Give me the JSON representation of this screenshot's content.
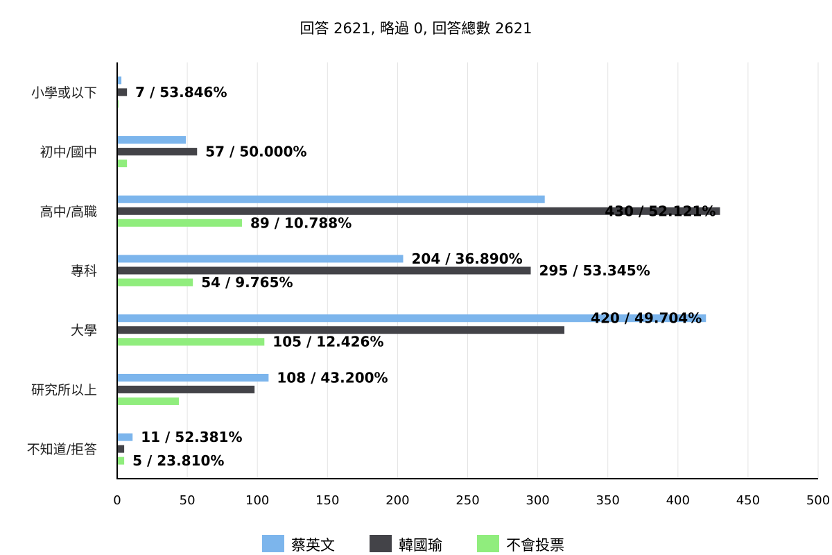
{
  "chart_data": {
    "type": "bar",
    "orientation": "horizontal",
    "title": "回答 2621, 略過 0, 回答總數 2621",
    "categories": [
      "小學或以下",
      "初中/國中",
      "高中/高職",
      "專科",
      "大學",
      "研究所以上",
      "不知道/拒答"
    ],
    "series": [
      {
        "name": "蔡英文",
        "color": "#7cb5ec",
        "values": [
          3,
          49,
          305,
          204,
          420,
          108,
          11
        ],
        "labels": [
          "",
          "",
          "",
          "204 / 36.890%",
          "420 / 49.704%",
          "108 / 43.200%",
          "11 / 52.381%"
        ]
      },
      {
        "name": "韓國瑜",
        "color": "#434348",
        "values": [
          7,
          57,
          430,
          295,
          319,
          98,
          5
        ],
        "labels": [
          "7 / 53.846%",
          "57 / 50.000%",
          "430 / 52.121%",
          "295 / 53.345%",
          "",
          "",
          ""
        ]
      },
      {
        "name": "不會投票",
        "color": "#90ed7d",
        "values": [
          1,
          7,
          89,
          54,
          105,
          44,
          5
        ],
        "labels": [
          "",
          "",
          "89 / 10.788%",
          "54 / 9.765%",
          "105 / 12.426%",
          "",
          "5 / 23.810%"
        ]
      }
    ],
    "xticks": [
      0,
      50,
      100,
      150,
      200,
      250,
      300,
      350,
      400,
      450,
      500
    ],
    "xlim": [
      0,
      500
    ],
    "grid": true,
    "legend_position": "bottom"
  }
}
